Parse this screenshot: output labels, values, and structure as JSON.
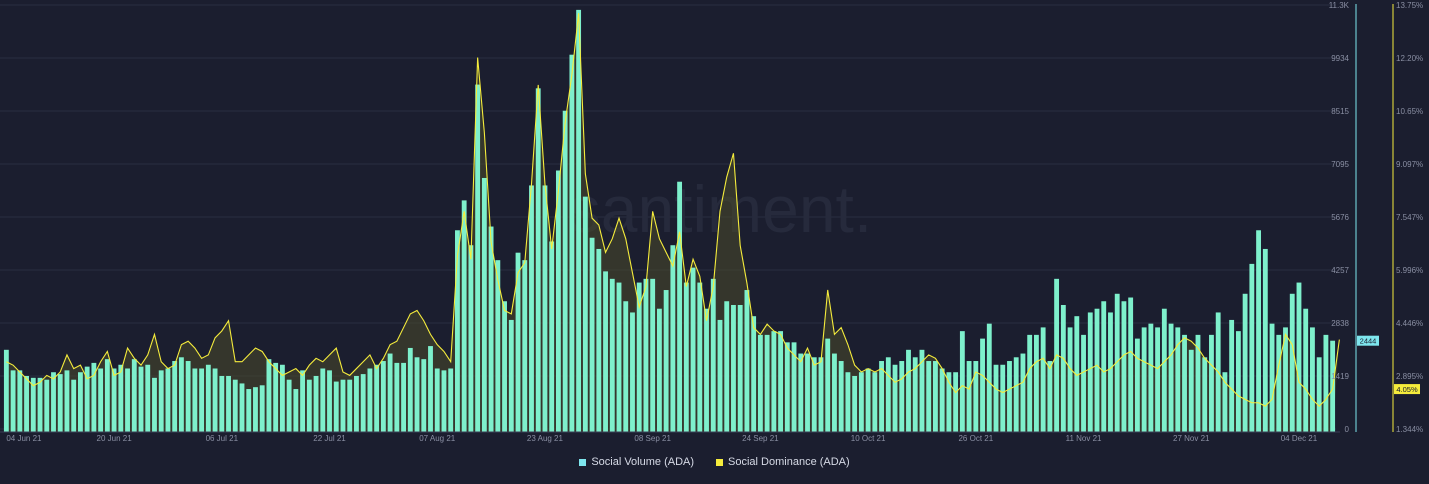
{
  "chart_data": {
    "type": "bar",
    "watermark": "santiment.",
    "x_ticks": [
      "04 Jun 21",
      "20 Jun 21",
      "06 Jul 21",
      "22 Jul 21",
      "07 Aug 21",
      "23 Aug 21",
      "08 Sep 21",
      "24 Sep 21",
      "10 Oct 21",
      "26 Oct 21",
      "11 Nov 21",
      "27 Nov 21",
      "04 Dec 21"
    ],
    "y_left_ticks": [
      "11.3K",
      "9934",
      "8515",
      "7095",
      "5676",
      "4257",
      "2838",
      "1419",
      "0"
    ],
    "y_right_ticks": [
      "13.75%",
      "12.20%",
      "10.65%",
      "9.097%",
      "7.547%",
      "5.996%",
      "4.446%",
      "2.895%",
      "1.344%"
    ],
    "ylim_volume": [
      0,
      11350
    ],
    "ylim_dominance": [
      1.344,
      13.75
    ],
    "last_value_labels": {
      "volume": "2444",
      "dominance": "4.05%"
    },
    "colors": {
      "volume": "#7ef0cc",
      "dominance": "#f5ec3c",
      "background": "#1b1e2f",
      "grid": "#2a2e41",
      "axis_text": "#8a8fa3",
      "badge_volume": "#7ee6ee"
    },
    "series": [
      {
        "name": "Social Volume (ADA)",
        "type": "bar",
        "axis": "left",
        "values": [
          2200,
          1650,
          1650,
          1500,
          1450,
          1450,
          1400,
          1600,
          1550,
          1650,
          1400,
          1600,
          1750,
          1850,
          1700,
          1950,
          1700,
          1800,
          1700,
          1950,
          1750,
          1800,
          1450,
          1650,
          1700,
          1900,
          2000,
          1900,
          1700,
          1700,
          1800,
          1700,
          1500,
          1500,
          1400,
          1300,
          1150,
          1200,
          1250,
          1950,
          1850,
          1800,
          1400,
          1150,
          1650,
          1400,
          1500,
          1700,
          1650,
          1350,
          1400,
          1400,
          1500,
          1550,
          1700,
          1800,
          1900,
          2100,
          1850,
          1850,
          2250,
          2000,
          1950,
          2300,
          1700,
          1650,
          1700,
          5400,
          6200,
          5000,
          9300,
          6800,
          5500,
          4600,
          3500,
          3000,
          4800,
          4600,
          6600,
          9200,
          6600,
          5100,
          7000,
          8600,
          10100,
          11300,
          6300,
          5200,
          4900,
          4300,
          4100,
          4000,
          3500,
          3200,
          4000,
          4100,
          4100,
          3300,
          3800,
          5000,
          6700,
          4000,
          4400,
          4000,
          3300,
          4100,
          3000,
          3500,
          3400,
          3400,
          3800,
          3100,
          2600,
          2600,
          2700,
          2700,
          2400,
          2400,
          2100,
          2100,
          2000,
          2000,
          2500,
          2100,
          1900,
          1600,
          1500,
          1600,
          1700,
          1600,
          1900,
          2000,
          1800,
          1900,
          2200,
          2000,
          2200,
          1900,
          1900,
          1700,
          1600,
          1600,
          2700,
          1900,
          1900,
          2500,
          2900,
          1800,
          1800,
          1900,
          2000,
          2100,
          2600,
          2600,
          2800,
          1900,
          4100,
          3400,
          2800,
          3100,
          2600,
          3200,
          3300,
          3500,
          3200,
          3700,
          3500,
          3600,
          2500,
          2800,
          2900,
          2800,
          3300,
          2900,
          2800,
          2600,
          2200,
          2600,
          2000,
          2600,
          3200,
          1600,
          3000,
          2700,
          3700,
          4500,
          5400,
          4900,
          2900,
          2600,
          2800,
          3700,
          4000,
          3300,
          2800,
          2000,
          2600,
          2444
        ],
        "values_note": ""
      },
      {
        "name": "Social Dominance (ADA)",
        "type": "line",
        "axis": "right",
        "values": [
          3.4,
          3.3,
          3.1,
          2.9,
          2.7,
          2.8,
          3.0,
          2.9,
          3.1,
          3.6,
          3.2,
          3.3,
          2.9,
          3.0,
          3.4,
          3.7,
          3.0,
          3.1,
          3.8,
          3.5,
          3.3,
          3.6,
          4.2,
          3.4,
          3.2,
          3.3,
          3.9,
          4.0,
          3.8,
          3.5,
          3.6,
          4.1,
          4.3,
          4.6,
          3.4,
          3.4,
          3.6,
          3.8,
          3.7,
          3.4,
          3.2,
          3.0,
          3.1,
          3.2,
          3.0,
          3.3,
          3.5,
          3.4,
          3.6,
          3.8,
          3.1,
          3.0,
          3.2,
          3.4,
          3.6,
          3.2,
          3.5,
          3.9,
          4.0,
          4.4,
          4.8,
          4.9,
          4.6,
          4.2,
          3.9,
          3.7,
          3.4,
          6.5,
          7.8,
          6.4,
          12.3,
          10.1,
          6.9,
          5.8,
          4.9,
          4.8,
          6.0,
          6.3,
          8.6,
          11.5,
          8.6,
          6.7,
          8.4,
          10.4,
          11.8,
          13.6,
          8.9,
          7.6,
          7.4,
          6.6,
          7.0,
          7.6,
          7.0,
          6.0,
          5.0,
          5.6,
          7.8,
          7.0,
          6.6,
          6.2,
          7.2,
          5.6,
          6.4,
          5.9,
          4.6,
          5.6,
          7.8,
          8.8,
          9.5,
          6.8,
          5.7,
          4.4,
          4.2,
          4.5,
          4.3,
          4.2,
          3.8,
          3.6,
          3.4,
          3.8,
          3.3,
          3.4,
          5.5,
          4.2,
          4.4,
          3.9,
          3.3,
          3.1,
          3.2,
          3.1,
          3.2,
          3.0,
          2.8,
          2.9,
          3.1,
          3.2,
          3.4,
          3.6,
          3.5,
          3.2,
          2.8,
          2.5,
          2.7,
          2.6,
          3.1,
          3.0,
          2.8,
          2.6,
          2.5,
          2.6,
          2.7,
          2.8,
          3.2,
          3.4,
          3.5,
          3.2,
          3.6,
          3.5,
          3.2,
          3.0,
          3.1,
          3.2,
          3.3,
          3.1,
          3.2,
          3.4,
          3.6,
          3.7,
          3.5,
          3.4,
          3.3,
          3.2,
          3.4,
          3.6,
          3.9,
          4.1,
          4.0,
          3.8,
          3.5,
          3.3,
          3.1,
          2.8,
          2.6,
          2.4,
          2.3,
          2.2,
          2.2,
          2.1,
          2.3,
          3.3,
          4.2,
          3.9,
          2.8,
          2.6,
          2.3,
          2.1,
          2.3,
          2.6,
          4.05
        ],
        "values_note": ""
      }
    ],
    "legend_position": "bottom-center",
    "grid": true
  },
  "legend": {
    "volume_label": "Social Volume (ADA)",
    "dominance_label": "Social Dominance (ADA)"
  }
}
